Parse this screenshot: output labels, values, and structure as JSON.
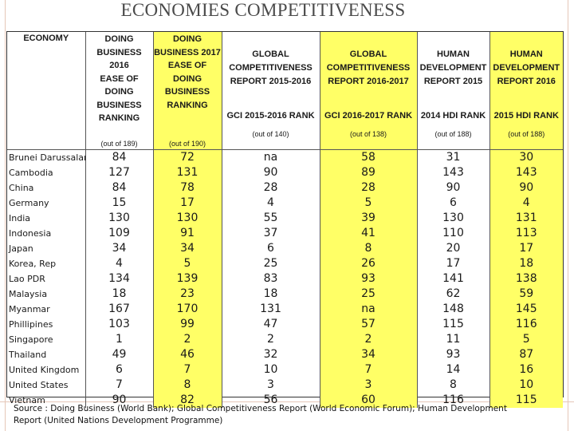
{
  "title": "ECONOMIES COMPETITIVENESS",
  "table": {
    "economy_header": "ECONOMY",
    "columns": [
      {
        "group_lines": [
          "DOING",
          "BUSINESS",
          "2016",
          "EASE OF",
          "DOING",
          "BUSINESS",
          "RANKING"
        ],
        "rank_label": "",
        "out_of": "(out of 189)",
        "yellow": false
      },
      {
        "group_lines": [
          "DOING",
          "BUSINESS 2017",
          "",
          "EASE OF",
          "DOING",
          "BUSINESS",
          "RANKING"
        ],
        "rank_label": "",
        "out_of": "(out of 190)",
        "yellow": true
      },
      {
        "group_lines": [
          "GLOBAL",
          "COMPETITIVENESS",
          "REPORT 2015-2016"
        ],
        "rank_label": "GCI 2015-2016 RANK",
        "out_of": "(out of 140)",
        "yellow": false
      },
      {
        "group_lines": [
          "GLOBAL",
          "COMPETITIVENESS",
          "REPORT 2016-2017"
        ],
        "rank_label": "GCI 2016-2017 RANK",
        "out_of": "(out of 138)",
        "yellow": true
      },
      {
        "group_lines": [
          "HUMAN",
          "DEVELOPMENT",
          "REPORT 2015"
        ],
        "rank_label": "2014 HDI RANK",
        "out_of": "(out of 188)",
        "yellow": false
      },
      {
        "group_lines": [
          "HUMAN",
          "DEVELOPMENT",
          "REPORT 2016"
        ],
        "rank_label": "2015 HDI RANK",
        "out_of": "(out of 188)",
        "yellow": true
      }
    ],
    "rows": [
      {
        "economy": "Brunei Darussalam",
        "values": [
          "84",
          "72",
          "na",
          "58",
          "31",
          "30"
        ]
      },
      {
        "economy": "Cambodia",
        "values": [
          "127",
          "131",
          "90",
          "89",
          "143",
          "143"
        ]
      },
      {
        "economy": "China",
        "values": [
          "84",
          "78",
          "28",
          "28",
          "90",
          "90"
        ]
      },
      {
        "economy": "Germany",
        "values": [
          "15",
          "17",
          "4",
          "5",
          "6",
          "4"
        ]
      },
      {
        "economy": "India",
        "values": [
          "130",
          "130",
          "55",
          "39",
          "130",
          "131"
        ]
      },
      {
        "economy": "Indonesia",
        "values": [
          "109",
          "91",
          "37",
          "41",
          "110",
          "113"
        ]
      },
      {
        "economy": "Japan",
        "values": [
          "34",
          "34",
          "6",
          "8",
          "20",
          "17"
        ]
      },
      {
        "economy": "Korea, Rep",
        "values": [
          "4",
          "5",
          "25",
          "26",
          "17",
          "18"
        ]
      },
      {
        "economy": "Lao PDR",
        "values": [
          "134",
          "139",
          "83",
          "93",
          "141",
          "138"
        ]
      },
      {
        "economy": "Malaysia",
        "values": [
          "18",
          "23",
          "18",
          "25",
          "62",
          "59"
        ]
      },
      {
        "economy": "Myanmar",
        "values": [
          "167",
          "170",
          "131",
          "na",
          "148",
          "145"
        ]
      },
      {
        "economy": "Phillipines",
        "values": [
          "103",
          "99",
          "47",
          "57",
          "115",
          "116"
        ]
      },
      {
        "economy": "Singapore",
        "values": [
          "1",
          "2",
          "2",
          "2",
          "11",
          "5"
        ]
      },
      {
        "economy": "Thailand",
        "values": [
          "49",
          "46",
          "32",
          "34",
          "93",
          "87"
        ]
      },
      {
        "economy": "United Kingdom",
        "values": [
          "6",
          "7",
          "10",
          "7",
          "14",
          "16"
        ]
      },
      {
        "economy": "United States",
        "values": [
          "7",
          "8",
          "3",
          "3",
          "8",
          "10"
        ]
      },
      {
        "economy": "Vietnam",
        "values": [
          "90",
          "82",
          "56",
          "60",
          "116",
          "115"
        ]
      }
    ]
  },
  "source": "Source : Doing Business (World Bank); Global Competitiveness Report (World Economic Forum); Human Development Report (United Nations Development Programme)",
  "colors": {
    "highlight": "#ffff66",
    "frame": "#e6c7b8",
    "title": "#4a4a4a"
  }
}
